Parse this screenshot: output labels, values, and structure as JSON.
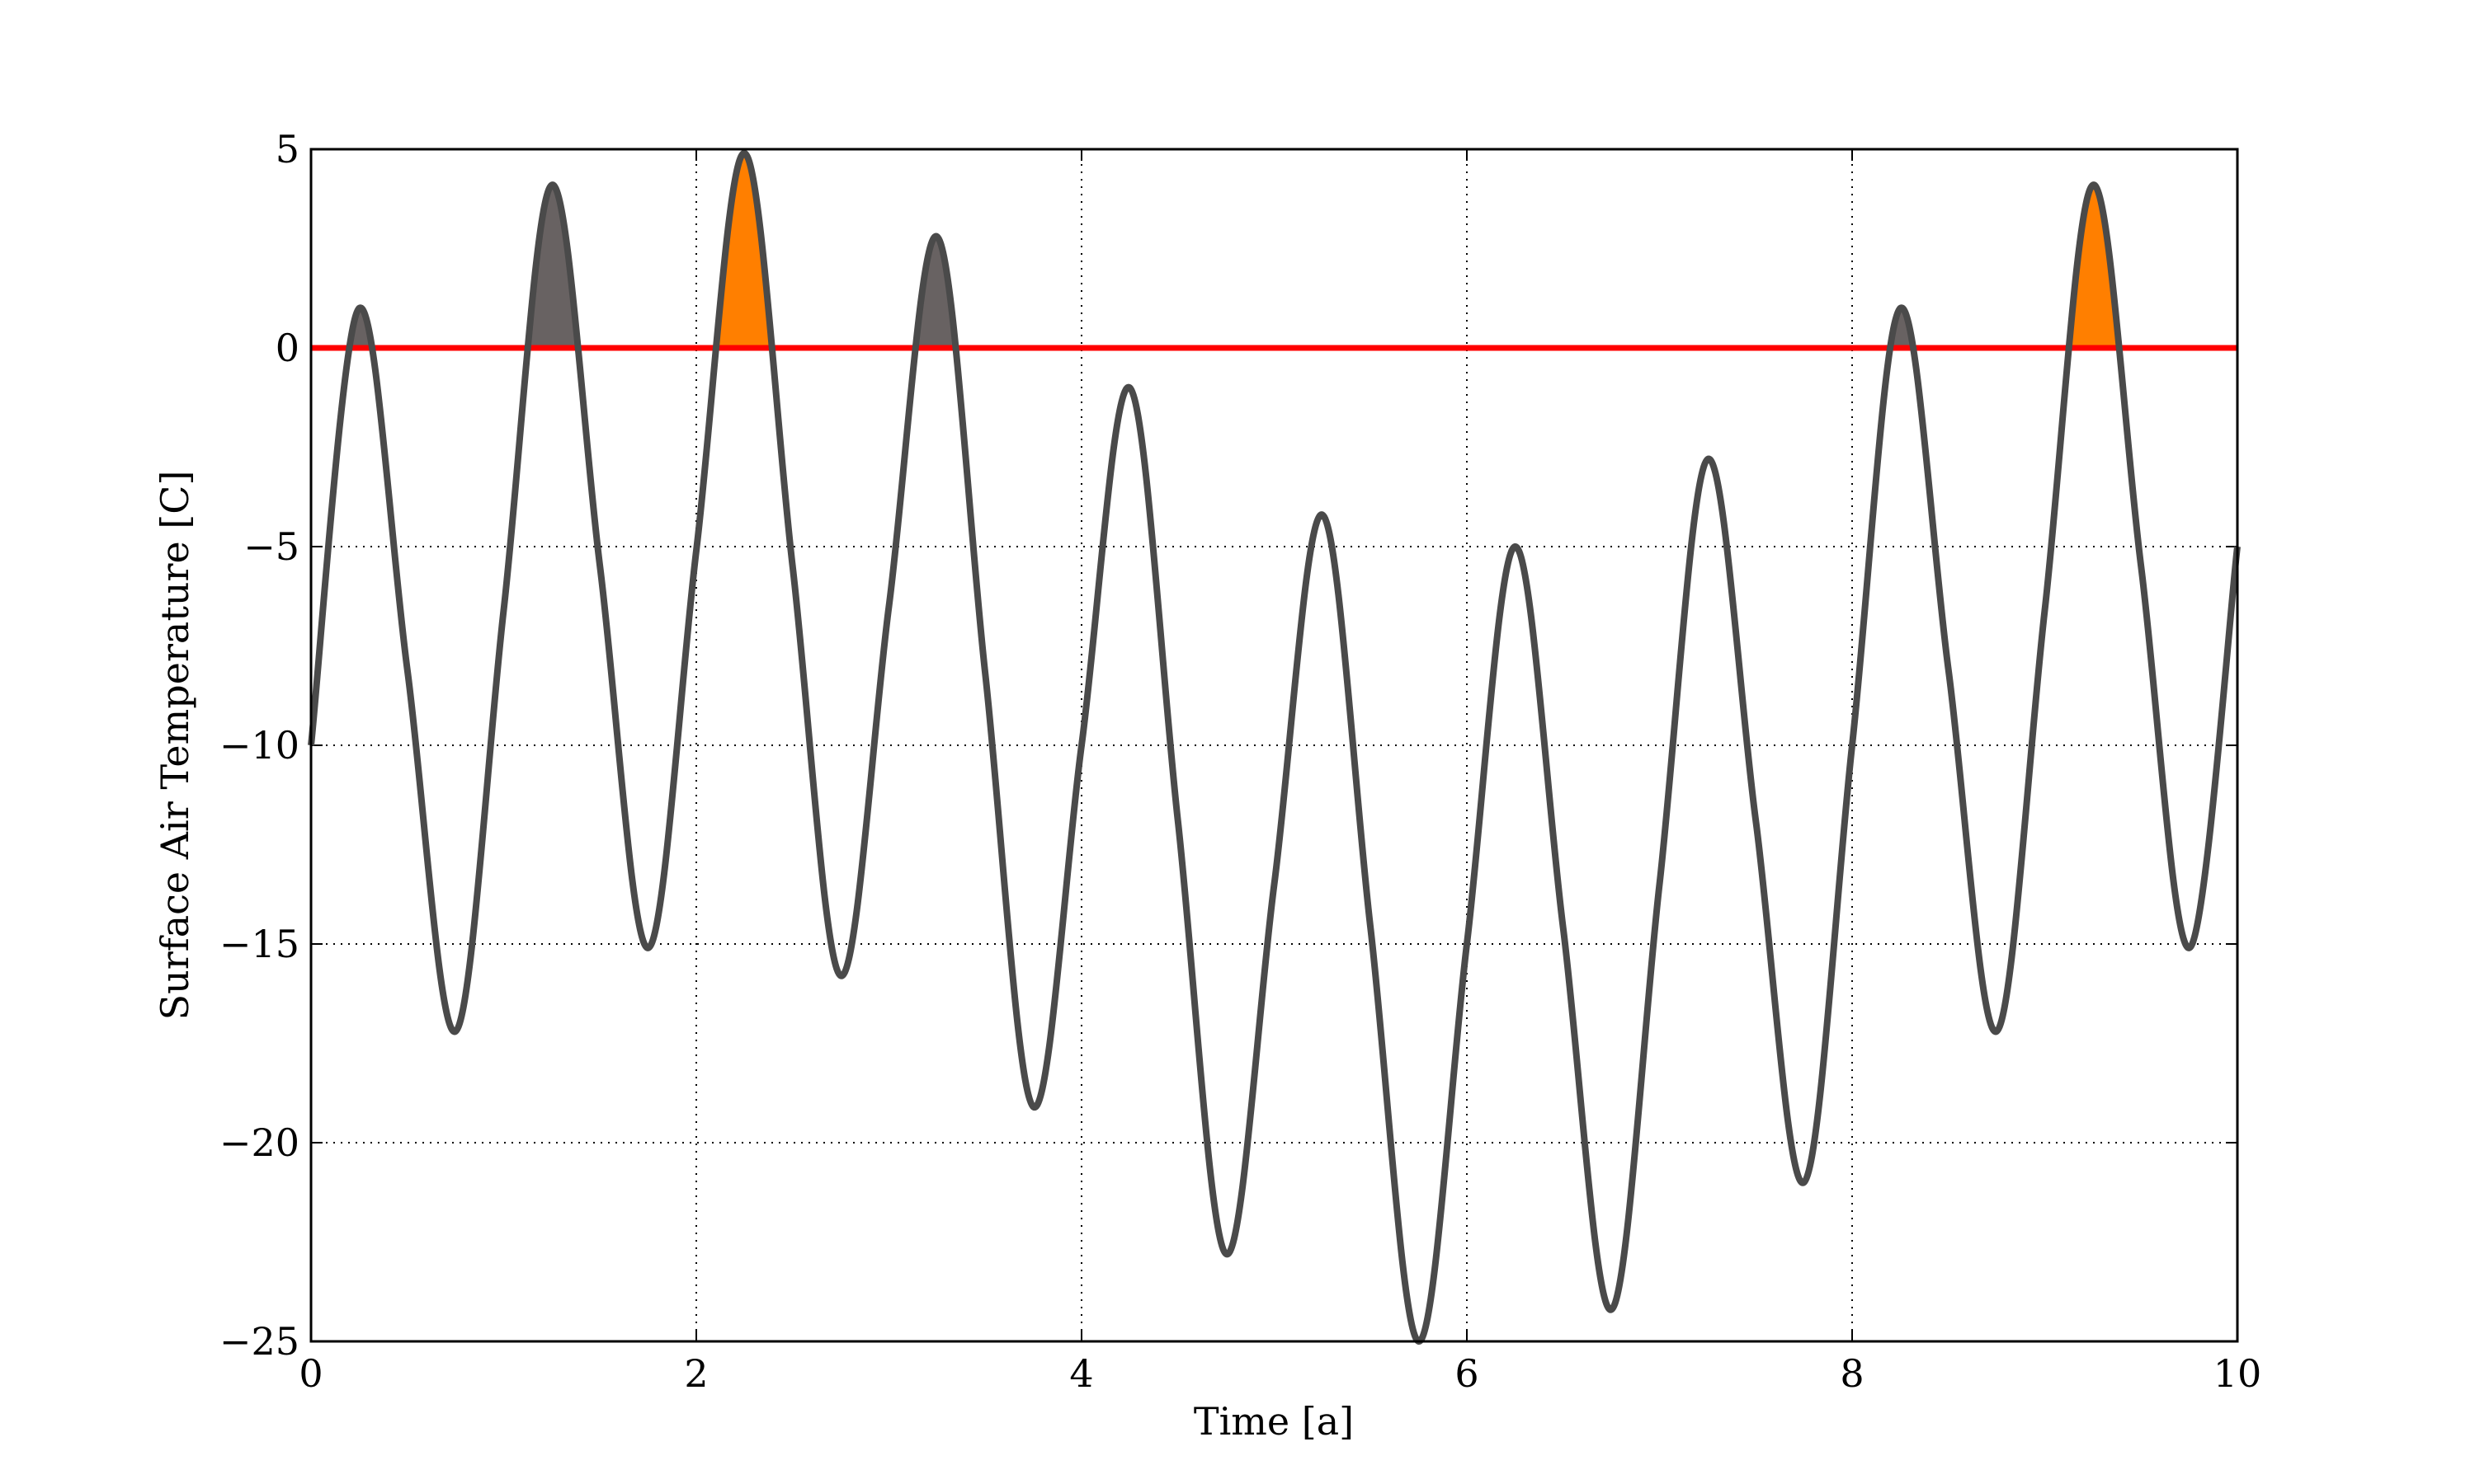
{
  "chart_data": {
    "type": "line",
    "xlabel": "Time [a]",
    "ylabel": "Surface Air Temperature [C]",
    "x": [
      0,
      0.25,
      0.5,
      0.75,
      1,
      1.25,
      1.5,
      1.75,
      2,
      2.25,
      2.5,
      2.75,
      3,
      3.25,
      3.5,
      3.75,
      4,
      4.25,
      4.5,
      4.75,
      5,
      5.25,
      5.5,
      5.75,
      6,
      6.25,
      6.5,
      6.75,
      7,
      7.25,
      7.5,
      7.75,
      8,
      8.25,
      8.5,
      8.75,
      9,
      9.25,
      9.5,
      9.75,
      10
    ],
    "series": [
      {
        "color": "#4a4a4a",
        "values": [
          -10,
          1,
          -8.1,
          -17.2,
          -6.6,
          4.1,
          -5.5,
          -15.1,
          -5.1,
          4.9,
          -5.5,
          -15.8,
          -6.5,
          2.8,
          -8.2,
          -19.1,
          -10,
          -1,
          -11.9,
          -22.8,
          -13.5,
          -4.2,
          -14.6,
          -25,
          -15,
          -5,
          -14.6,
          -24.2,
          -13.5,
          -2.8,
          -11.9,
          -21,
          -10,
          1,
          -8.1,
          -17.2,
          -6.6,
          4.1,
          -5.5,
          -15.1,
          -5
        ]
      }
    ],
    "hline": {
      "value": 0,
      "color": "#ff0000"
    },
    "fill_above_color": "#686262",
    "highlight_peaks": [
      2.25,
      9.25
    ],
    "highlight_color": "#ff7f00",
    "xlim": [
      0,
      10
    ],
    "xticks": [
      0,
      2,
      4,
      6,
      8,
      10
    ],
    "ylim": [
      -25,
      5
    ],
    "yticks": [
      {
        "value": -25,
        "label": "−25"
      },
      {
        "value": -20,
        "label": "−20"
      },
      {
        "value": -15,
        "label": "−15"
      },
      {
        "value": -10,
        "label": "−10"
      },
      {
        "value": -5,
        "label": "−5"
      },
      0,
      5
    ],
    "grid": true
  }
}
